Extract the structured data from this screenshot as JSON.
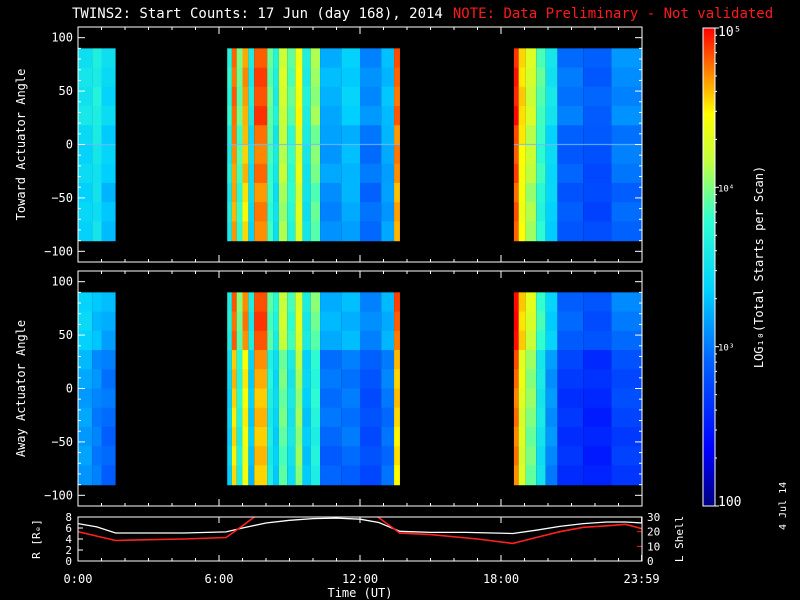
{
  "header": {
    "title": "TWINS2: Start Counts: 17 Jun (day 168), 2014",
    "note": "NOTE: Data Preliminary - Not validated"
  },
  "footer": {
    "date_stamp": "4 Jul 14"
  },
  "colors": {
    "background": "#000000",
    "note_red": "#ff1a1a",
    "r_line": "#ffffff",
    "lshell_line": "#ff2020"
  },
  "chart_data": [
    {
      "type": "heatmap",
      "panel": "toward",
      "title": "",
      "xlabel": "",
      "ylabel": "Toward Actuator Angle",
      "xlim": [
        0,
        24
      ],
      "ylim": [
        -110,
        110
      ],
      "yticks": [
        -100,
        -50,
        0,
        50,
        100
      ],
      "ytick_labels": [
        "−100",
        "−50",
        "0",
        "50",
        "100"
      ],
      "data_range": [
        -90,
        90
      ],
      "segments": [
        {
          "x": [
            0.0,
            1.6
          ],
          "bands": [
            [
              0.0,
              0.6,
              0.48
            ],
            [
              0.6,
              1.0,
              0.52
            ],
            [
              1.0,
              1.6,
              0.45
            ]
          ]
        },
        {
          "x": [
            6.35,
            13.7
          ],
          "bands": [
            [
              6.35,
              6.55,
              0.55
            ],
            [
              6.55,
              6.75,
              0.9
            ],
            [
              6.75,
              7.0,
              0.62
            ],
            [
              7.0,
              7.25,
              0.86
            ],
            [
              7.25,
              7.5,
              0.5
            ],
            [
              7.5,
              8.05,
              0.92
            ],
            [
              8.05,
              8.3,
              0.62
            ],
            [
              8.3,
              8.55,
              0.52
            ],
            [
              8.55,
              8.9,
              0.72
            ],
            [
              8.9,
              9.25,
              0.6
            ],
            [
              9.25,
              9.55,
              0.78
            ],
            [
              9.55,
              9.9,
              0.52
            ],
            [
              9.9,
              10.3,
              0.66
            ],
            [
              10.3,
              11.2,
              0.38
            ],
            [
              11.2,
              12.0,
              0.42
            ],
            [
              12.0,
              12.9,
              0.33
            ],
            [
              12.9,
              13.45,
              0.4
            ],
            [
              13.45,
              13.7,
              0.9
            ]
          ]
        },
        {
          "x": [
            18.55,
            24.0
          ],
          "bands": [
            [
              18.55,
              18.75,
              0.95
            ],
            [
              18.75,
              19.05,
              0.82
            ],
            [
              19.05,
              19.5,
              0.72
            ],
            [
              19.5,
              19.9,
              0.6
            ],
            [
              19.9,
              20.4,
              0.48
            ],
            [
              20.4,
              21.5,
              0.3
            ],
            [
              21.5,
              22.7,
              0.27
            ],
            [
              22.7,
              24.0,
              0.33
            ]
          ]
        }
      ]
    },
    {
      "type": "heatmap",
      "panel": "away",
      "title": "",
      "xlabel": "",
      "ylabel": "Away Actuator Angle",
      "xlim": [
        0,
        24
      ],
      "ylim": [
        -110,
        110
      ],
      "yticks": [
        -100,
        -50,
        0,
        50,
        100
      ],
      "ytick_labels": [
        "−100",
        "−50",
        "0",
        "50",
        "100"
      ],
      "data_range": [
        -90,
        90
      ],
      "segments": [
        {
          "x": [
            0.0,
            1.6
          ],
          "bands": [
            [
              0.0,
              0.6,
              0.42
            ],
            [
              0.6,
              1.0,
              0.38
            ],
            [
              1.0,
              1.6,
              0.35
            ]
          ]
        },
        {
          "x": [
            6.35,
            13.7
          ],
          "bands": [
            [
              6.35,
              6.55,
              0.5
            ],
            [
              6.55,
              6.75,
              0.88
            ],
            [
              6.75,
              7.0,
              0.6
            ],
            [
              7.0,
              7.25,
              0.85
            ],
            [
              7.25,
              7.5,
              0.48
            ],
            [
              7.5,
              8.05,
              0.9
            ],
            [
              8.05,
              8.3,
              0.58
            ],
            [
              8.3,
              8.55,
              0.5
            ],
            [
              8.55,
              8.9,
              0.68
            ],
            [
              8.9,
              9.25,
              0.55
            ],
            [
              9.25,
              9.55,
              0.72
            ],
            [
              9.55,
              9.9,
              0.48
            ],
            [
              9.9,
              10.3,
              0.6
            ],
            [
              10.3,
              11.2,
              0.35
            ],
            [
              11.2,
              12.0,
              0.36
            ],
            [
              12.0,
              12.9,
              0.3
            ],
            [
              12.9,
              13.45,
              0.36
            ],
            [
              13.45,
              13.7,
              0.88
            ]
          ]
        },
        {
          "x": [
            18.55,
            24.0
          ],
          "bands": [
            [
              18.55,
              18.75,
              0.95
            ],
            [
              18.75,
              19.05,
              0.8
            ],
            [
              19.05,
              19.5,
              0.7
            ],
            [
              19.5,
              19.9,
              0.55
            ],
            [
              19.9,
              20.4,
              0.4
            ],
            [
              20.4,
              21.5,
              0.25
            ],
            [
              21.5,
              22.7,
              0.22
            ],
            [
              22.7,
              24.0,
              0.28
            ]
          ]
        }
      ]
    },
    {
      "type": "line",
      "panel": "orbit",
      "title": "",
      "xlabel": "Time (UT)",
      "ylabel": "R [Rₑ]",
      "ylabel_right": "L Shell",
      "xlim": [
        0,
        24
      ],
      "xticks": [
        0,
        6,
        12,
        18,
        23.983
      ],
      "xtick_labels": [
        "0:00",
        "6:00",
        "12:00",
        "18:00",
        "23:59"
      ],
      "ylim": [
        0,
        8
      ],
      "yticks": [
        0,
        2,
        4,
        6,
        8
      ],
      "ylim_right": [
        0,
        30
      ],
      "yticks_right": [
        0,
        10,
        20,
        30
      ],
      "series": [
        {
          "x": [
            0,
            0.8,
            1.6,
            3,
            4.5,
            6.3,
            7,
            8,
            9,
            10,
            11,
            12,
            12.8,
            13.7,
            15,
            16.5,
            18.5,
            19.5,
            20.5,
            21.5,
            22.5,
            23.3,
            24
          ],
          "values": [
            6.8,
            6.2,
            5.1,
            5.1,
            5.1,
            5.3,
            6.0,
            6.9,
            7.4,
            7.7,
            7.8,
            7.6,
            7.0,
            5.4,
            5.2,
            5.2,
            5.0,
            5.6,
            6.3,
            6.8,
            7.1,
            7.1,
            6.9
          ]
        },
        {
          "x": [
            0,
            0.8,
            1.6,
            3,
            4.5,
            6.3,
            7,
            7.5,
            8.2,
            12.5,
            13.7,
            15,
            17,
            18.5,
            19.5,
            20.5,
            21.5,
            22.5,
            23.3,
            24
          ],
          "values": [
            20,
            17,
            14,
            14.5,
            15,
            16,
            24,
            30,
            33,
            33,
            19,
            18,
            15,
            12,
            16,
            20,
            23,
            24,
            25,
            22
          ]
        }
      ]
    }
  ],
  "colorbar": {
    "label": "LOG₁₀(Total Starts per Scan)",
    "range": [
      100,
      100000
    ],
    "ticks": [
      {
        "value": 100,
        "label": "100"
      },
      {
        "value": 1000,
        "label": "10³"
      },
      {
        "value": 10000,
        "label": "10⁴"
      },
      {
        "value": 100000,
        "label": "10⁵"
      }
    ]
  }
}
